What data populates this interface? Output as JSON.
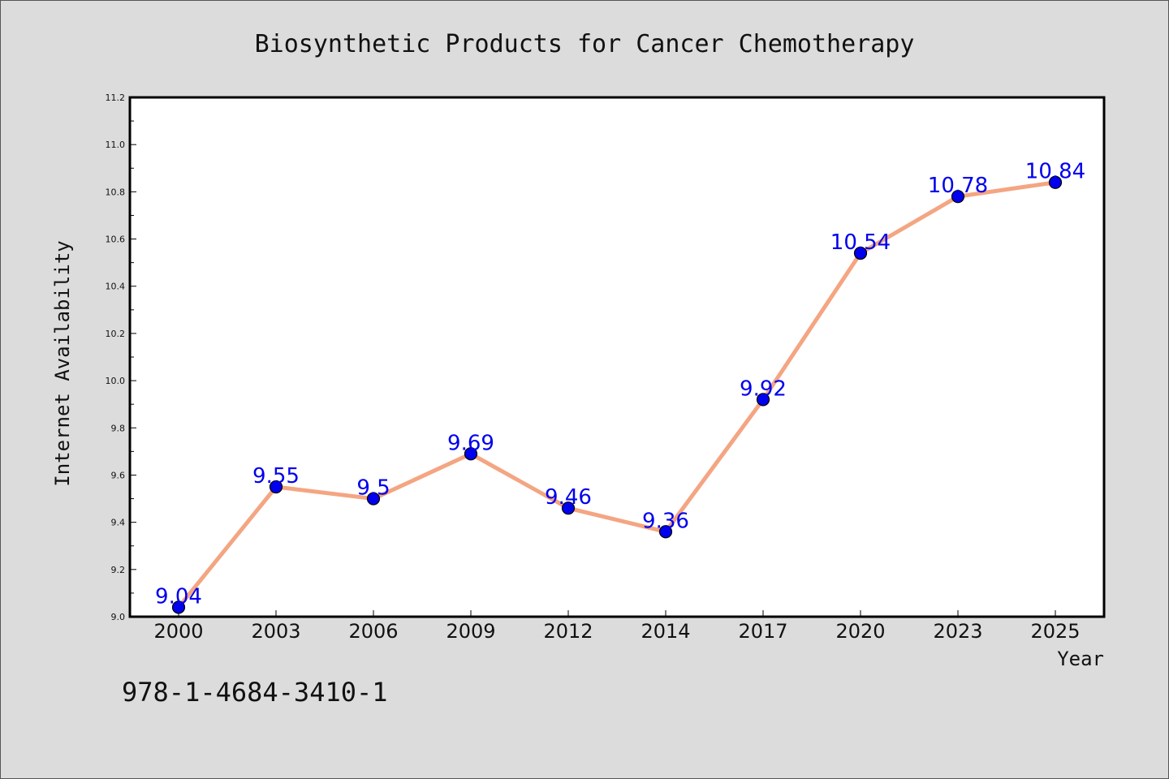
{
  "chart_data": {
    "type": "line",
    "title": "Biosynthetic Products for Cancer Chemotherapy",
    "xlabel": "Year",
    "ylabel": "Internet Availability",
    "categories": [
      "2000",
      "2003",
      "2006",
      "2009",
      "2012",
      "2014",
      "2017",
      "2020",
      "2023",
      "2025"
    ],
    "series": [
      {
        "values": [
          9.04,
          9.55,
          9.5,
          9.69,
          9.46,
          9.36,
          9.92,
          10.54,
          10.78,
          10.84
        ],
        "data_labels": [
          "9.04",
          "9.55",
          "9.5",
          "9.69",
          "9.46",
          "9.36",
          "9.92",
          "10.54",
          "10.78",
          "10.84"
        ]
      }
    ],
    "ylim": [
      9.0,
      11.2
    ],
    "yticks": [
      "9.0",
      "9.2",
      "9.4",
      "9.6",
      "9.8",
      "10.0",
      "10.2",
      "10.4",
      "10.6",
      "10.8",
      "11.0",
      "11.2"
    ],
    "line_color": "#f4a582",
    "marker_color": "#0000ee",
    "label_color": "#0000ee",
    "grid": false
  },
  "footer_text": "978-1-4684-3410-1"
}
